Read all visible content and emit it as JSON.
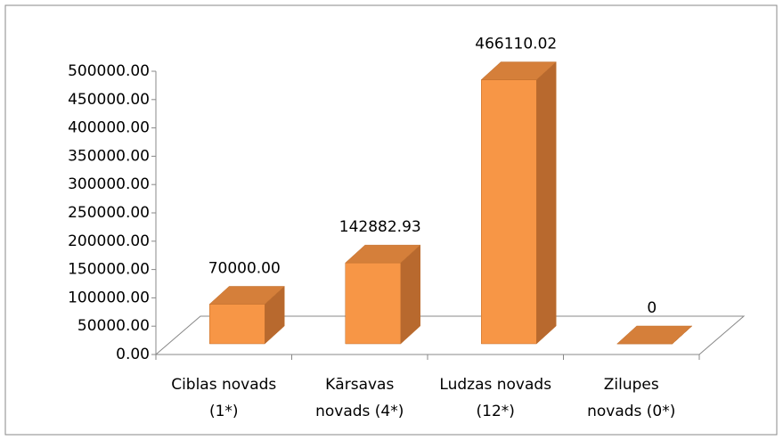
{
  "chart_data": {
    "type": "bar3d",
    "categories": [
      [
        "Ciblas novads",
        "(1*)"
      ],
      [
        "Kārsavas",
        "novads (4*)"
      ],
      [
        "Ludzas novads",
        "(12*)"
      ],
      [
        "Zilupes",
        "novads (0*)"
      ]
    ],
    "values": [
      70000,
      142882.93,
      466110.02,
      0
    ],
    "value_labels": [
      "70000.00",
      "142882.93",
      "466110.02",
      "0"
    ],
    "color": "#f79646",
    "ylim": [
      0,
      500000
    ],
    "yticks": [
      {
        "value": 0,
        "label": "0.00"
      },
      {
        "value": 50000,
        "label": "50000.00"
      },
      {
        "value": 100000,
        "label": "100000.00"
      },
      {
        "value": 150000,
        "label": "150000.00"
      },
      {
        "value": 200000,
        "label": "200000.00"
      },
      {
        "value": 250000,
        "label": "250000.00"
      },
      {
        "value": 300000,
        "label": "300000.00"
      },
      {
        "value": 350000,
        "label": "350000.00"
      },
      {
        "value": 400000,
        "label": "400000.00"
      },
      {
        "value": 450000,
        "label": "450000.00"
      },
      {
        "value": 500000,
        "label": "500000.00"
      }
    ]
  }
}
